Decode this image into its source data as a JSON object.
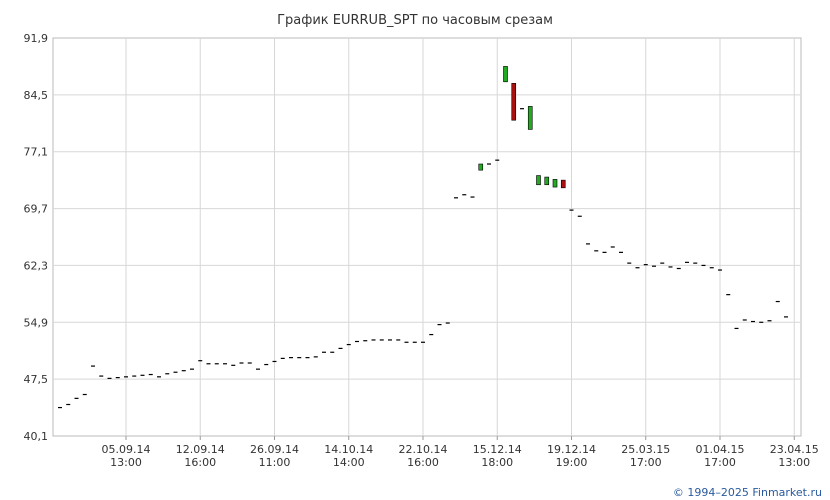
{
  "chart_data": {
    "type": "candlestick",
    "title": "График EURRUB_SPT по часовым срезам",
    "credit": "© 1994–2025 Finmarket.ru",
    "ylim": [
      40.1,
      91.9
    ],
    "y_ticks": [
      "91,9",
      "84,5",
      "77,1",
      "69,7",
      "62,3",
      "54,9",
      "47,5",
      "40,1"
    ],
    "y_tick_values": [
      91.9,
      84.5,
      77.1,
      69.7,
      62.3,
      54.9,
      47.5,
      40.1
    ],
    "x_ticks": [
      {
        "index": 8,
        "line1": "05.09.14",
        "line2": "13:00"
      },
      {
        "index": 17,
        "line1": "12.09.14",
        "line2": "16:00"
      },
      {
        "index": 26,
        "line1": "26.09.14",
        "line2": "11:00"
      },
      {
        "index": 35,
        "line1": "14.10.14",
        "line2": "14:00"
      },
      {
        "index": 44,
        "line1": "22.10.14",
        "line2": "16:00"
      },
      {
        "index": 53,
        "line1": "15.12.14",
        "line2": "18:00"
      },
      {
        "index": 62,
        "line1": "19.12.14",
        "line2": "19:00"
      },
      {
        "index": 71,
        "line1": "25.03.15",
        "line2": "17:00"
      },
      {
        "index": 80,
        "line1": "01.04.15",
        "line2": "17:00"
      },
      {
        "index": 89,
        "line1": "23.04.15",
        "line2": "13:00"
      }
    ],
    "candles": [
      {
        "o": 43.8,
        "c": 43.8
      },
      {
        "o": 44.2,
        "c": 44.2
      },
      {
        "o": 45.0,
        "c": 45.0
      },
      {
        "o": 45.5,
        "c": 45.5
      },
      {
        "o": 49.2,
        "c": 49.2
      },
      {
        "o": 47.9,
        "c": 47.9
      },
      {
        "o": 47.6,
        "c": 47.6
      },
      {
        "o": 47.7,
        "c": 47.7
      },
      {
        "o": 47.8,
        "c": 47.8
      },
      {
        "o": 47.9,
        "c": 47.9
      },
      {
        "o": 48.0,
        "c": 48.0
      },
      {
        "o": 48.1,
        "c": 48.1
      },
      {
        "o": 47.8,
        "c": 47.8
      },
      {
        "o": 48.2,
        "c": 48.2
      },
      {
        "o": 48.4,
        "c": 48.4
      },
      {
        "o": 48.6,
        "c": 48.6
      },
      {
        "o": 48.8,
        "c": 48.8
      },
      {
        "o": 49.9,
        "c": 49.9
      },
      {
        "o": 49.5,
        "c": 49.5
      },
      {
        "o": 49.5,
        "c": 49.5
      },
      {
        "o": 49.5,
        "c": 49.5
      },
      {
        "o": 49.3,
        "c": 49.3
      },
      {
        "o": 49.6,
        "c": 49.6
      },
      {
        "o": 49.6,
        "c": 49.6
      },
      {
        "o": 48.8,
        "c": 48.8
      },
      {
        "o": 49.4,
        "c": 49.4
      },
      {
        "o": 49.8,
        "c": 49.8
      },
      {
        "o": 50.2,
        "c": 50.2
      },
      {
        "o": 50.3,
        "c": 50.3
      },
      {
        "o": 50.3,
        "c": 50.3
      },
      {
        "o": 50.3,
        "c": 50.3
      },
      {
        "o": 50.4,
        "c": 50.4
      },
      {
        "o": 51.0,
        "c": 51.0
      },
      {
        "o": 51.0,
        "c": 51.0
      },
      {
        "o": 51.5,
        "c": 51.5
      },
      {
        "o": 52.0,
        "c": 52.0
      },
      {
        "o": 52.4,
        "c": 52.4
      },
      {
        "o": 52.5,
        "c": 52.5
      },
      {
        "o": 52.6,
        "c": 52.6
      },
      {
        "o": 52.6,
        "c": 52.6
      },
      {
        "o": 52.6,
        "c": 52.6
      },
      {
        "o": 52.6,
        "c": 52.6
      },
      {
        "o": 52.3,
        "c": 52.3
      },
      {
        "o": 52.3,
        "c": 52.3
      },
      {
        "o": 52.3,
        "c": 52.3
      },
      {
        "o": 53.3,
        "c": 53.3
      },
      {
        "o": 54.6,
        "c": 54.6
      },
      {
        "o": 54.8,
        "c": 54.8
      },
      {
        "o": 71.1,
        "c": 71.1
      },
      {
        "o": 71.5,
        "c": 71.5
      },
      {
        "o": 71.2,
        "c": 71.2
      },
      {
        "o": 74.7,
        "c": 75.5
      },
      {
        "o": 75.5,
        "c": 75.5
      },
      {
        "o": 76.0,
        "c": 76.0
      },
      {
        "o": 86.2,
        "c": 88.2
      },
      {
        "o": 86.0,
        "c": 81.2
      },
      {
        "o": 82.7,
        "c": 82.7
      },
      {
        "o": 80.0,
        "c": 83.0
      },
      {
        "o": 72.8,
        "c": 74.0
      },
      {
        "o": 72.8,
        "c": 73.8
      },
      {
        "o": 72.5,
        "c": 73.5
      },
      {
        "o": 73.4,
        "c": 72.4
      },
      {
        "o": 69.5,
        "c": 69.5
      },
      {
        "o": 68.7,
        "c": 68.7
      },
      {
        "o": 65.1,
        "c": 65.1
      },
      {
        "o": 64.2,
        "c": 64.2
      },
      {
        "o": 64.0,
        "c": 64.0
      },
      {
        "o": 64.7,
        "c": 64.7
      },
      {
        "o": 64.0,
        "c": 64.0
      },
      {
        "o": 62.6,
        "c": 62.6
      },
      {
        "o": 62.0,
        "c": 62.0
      },
      {
        "o": 62.4,
        "c": 62.4
      },
      {
        "o": 62.2,
        "c": 62.2
      },
      {
        "o": 62.6,
        "c": 62.6
      },
      {
        "o": 62.1,
        "c": 62.1
      },
      {
        "o": 61.9,
        "c": 61.9
      },
      {
        "o": 62.7,
        "c": 62.7
      },
      {
        "o": 62.6,
        "c": 62.6
      },
      {
        "o": 62.3,
        "c": 62.3
      },
      {
        "o": 62.0,
        "c": 62.0
      },
      {
        "o": 61.7,
        "c": 61.7
      },
      {
        "o": 58.5,
        "c": 58.5
      },
      {
        "o": 54.1,
        "c": 54.1
      },
      {
        "o": 55.2,
        "c": 55.2
      },
      {
        "o": 55.0,
        "c": 55.0
      },
      {
        "o": 54.9,
        "c": 54.9
      },
      {
        "o": 55.1,
        "c": 55.1
      },
      {
        "o": 57.6,
        "c": 57.6
      },
      {
        "o": 55.6,
        "c": 55.6
      }
    ],
    "colors": {
      "up": "#22aa22",
      "down": "#aa1111",
      "flat": "#000000",
      "grid": "#d7d7d7",
      "axis": "#bbbbbb",
      "credit": "#2a5a9e"
    },
    "grid": true,
    "legend": "none"
  }
}
